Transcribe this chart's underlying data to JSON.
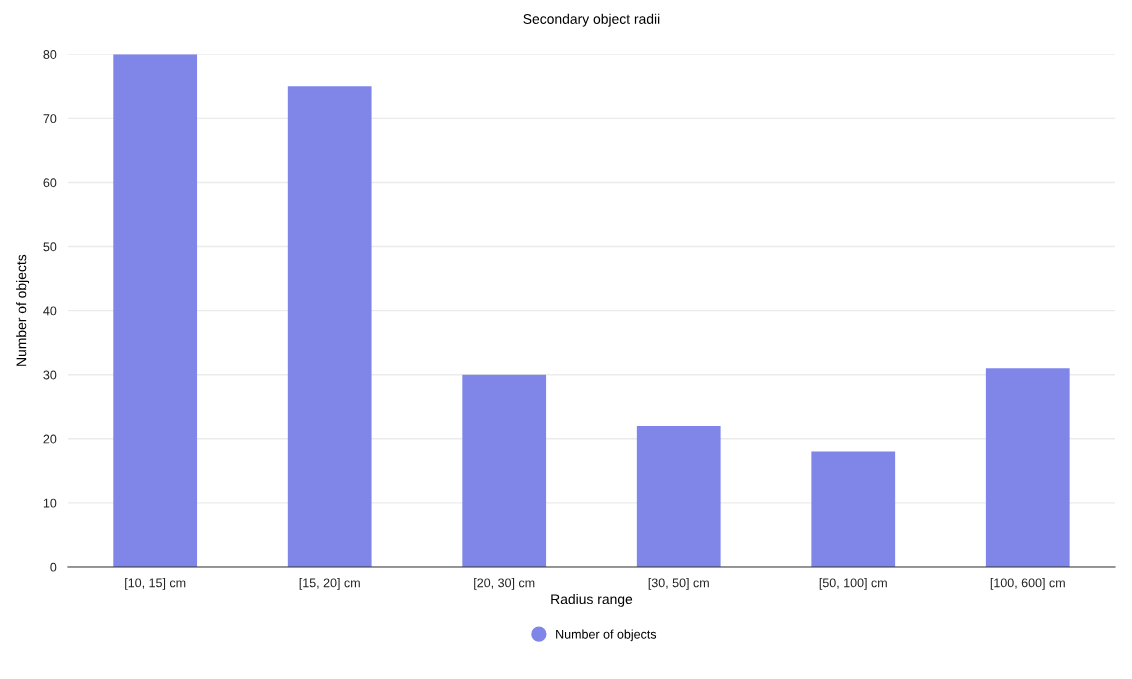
{
  "chart_data": {
    "type": "bar",
    "title": "Secondary object radii",
    "xlabel": "Radius range",
    "ylabel": "Number of objects",
    "categories": [
      "[10, 15] cm",
      "[15, 20] cm",
      "[20, 30] cm",
      "[30, 50] cm",
      "[50, 100] cm",
      "[100, 600] cm"
    ],
    "series": [
      {
        "name": "Number of objects",
        "color": "#7f86e8",
        "values": [
          80,
          75,
          30,
          22,
          18,
          31
        ]
      }
    ],
    "ylim": [
      0,
      80
    ],
    "yticks": [
      0,
      10,
      20,
      30,
      40,
      50,
      60,
      70,
      80
    ],
    "grid": "y",
    "legend": "bottom"
  }
}
